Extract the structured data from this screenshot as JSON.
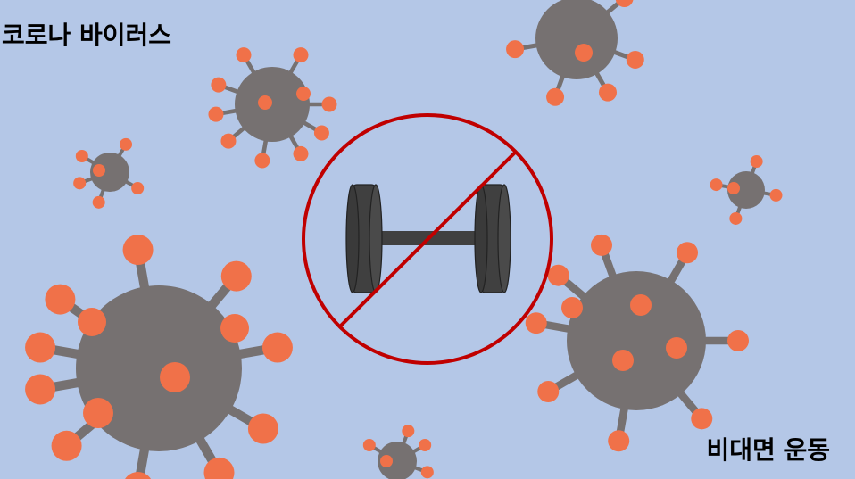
{
  "title": "코로나 바이러스",
  "subtitle": "비대면 운동",
  "colors": {
    "background": "#b4c7e7",
    "virus_body": "#767171",
    "spike": "#f07149",
    "prohibition": "#c00000",
    "dumbbell": "#404040"
  },
  "icons": [
    "coronavirus-icon",
    "dumbbell-icon",
    "prohibition-sign-icon"
  ]
}
